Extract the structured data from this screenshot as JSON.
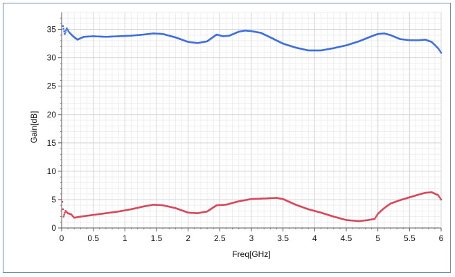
{
  "chart_data": {
    "type": "scatter",
    "title": "",
    "xlabel": "Freq[GHz]",
    "ylabel": "Gain[dB]",
    "xlim": [
      0,
      6
    ],
    "ylim": [
      0,
      38
    ],
    "x_ticks": [
      0,
      0.5,
      1,
      1.5,
      2,
      2.5,
      3,
      3.5,
      4,
      4.5,
      5,
      5.5,
      6
    ],
    "x_tick_labels": [
      "0",
      "0.5",
      "1",
      "1.5",
      "2",
      "2.5",
      "3",
      "3.5",
      "4",
      "4.5",
      "5",
      "5.5",
      "6"
    ],
    "y_ticks": [
      0,
      5,
      10,
      15,
      20,
      25,
      30,
      35
    ],
    "y_tick_labels": [
      "0",
      "5",
      "10",
      "15",
      "20",
      "25",
      "30",
      "35"
    ],
    "grid": true,
    "legend": "none",
    "series": [
      {
        "color": "#3d6fe0",
        "x": [
          0.02,
          0.05,
          0.08,
          0.12,
          0.18,
          0.25,
          0.35,
          0.5,
          0.7,
          0.9,
          1.1,
          1.3,
          1.45,
          1.6,
          1.8,
          2.0,
          2.15,
          2.3,
          2.45,
          2.55,
          2.65,
          2.8,
          2.9,
          3.0,
          3.15,
          3.3,
          3.5,
          3.7,
          3.9,
          4.1,
          4.3,
          4.5,
          4.7,
          4.9,
          5.0,
          5.1,
          5.2,
          5.35,
          5.5,
          5.65,
          5.75,
          5.85,
          5.95,
          6.0
        ],
        "y": [
          35.6,
          34.2,
          35.2,
          34.5,
          33.8,
          33.2,
          33.7,
          33.8,
          33.7,
          33.8,
          33.9,
          34.1,
          34.3,
          34.2,
          33.6,
          32.8,
          32.6,
          32.9,
          34.1,
          33.8,
          33.9,
          34.6,
          34.8,
          34.7,
          34.4,
          33.6,
          32.5,
          31.8,
          31.3,
          31.3,
          31.7,
          32.2,
          32.9,
          33.8,
          34.2,
          34.3,
          34.0,
          33.3,
          33.1,
          33.1,
          33.2,
          32.8,
          31.7,
          30.9
        ]
      },
      {
        "color": "#d8475a",
        "x": [
          0.01,
          0.03,
          0.06,
          0.1,
          0.15,
          0.2,
          0.3,
          0.5,
          0.7,
          0.9,
          1.1,
          1.3,
          1.45,
          1.6,
          1.8,
          2.0,
          2.15,
          2.3,
          2.45,
          2.6,
          2.8,
          3.0,
          3.2,
          3.4,
          3.5,
          3.7,
          3.9,
          4.1,
          4.3,
          4.5,
          4.7,
          4.85,
          4.95,
          5.0,
          5.1,
          5.2,
          5.35,
          5.5,
          5.65,
          5.75,
          5.85,
          5.95,
          6.0
        ],
        "y": [
          4.6,
          2.0,
          3.0,
          2.6,
          2.4,
          1.8,
          2.0,
          2.3,
          2.6,
          2.9,
          3.3,
          3.8,
          4.1,
          4.0,
          3.5,
          2.7,
          2.6,
          2.9,
          4.0,
          4.1,
          4.7,
          5.1,
          5.2,
          5.3,
          5.1,
          4.1,
          3.3,
          2.7,
          2.0,
          1.4,
          1.2,
          1.4,
          1.6,
          2.5,
          3.5,
          4.3,
          4.9,
          5.4,
          5.9,
          6.2,
          6.3,
          5.8,
          5.0
        ]
      }
    ]
  }
}
